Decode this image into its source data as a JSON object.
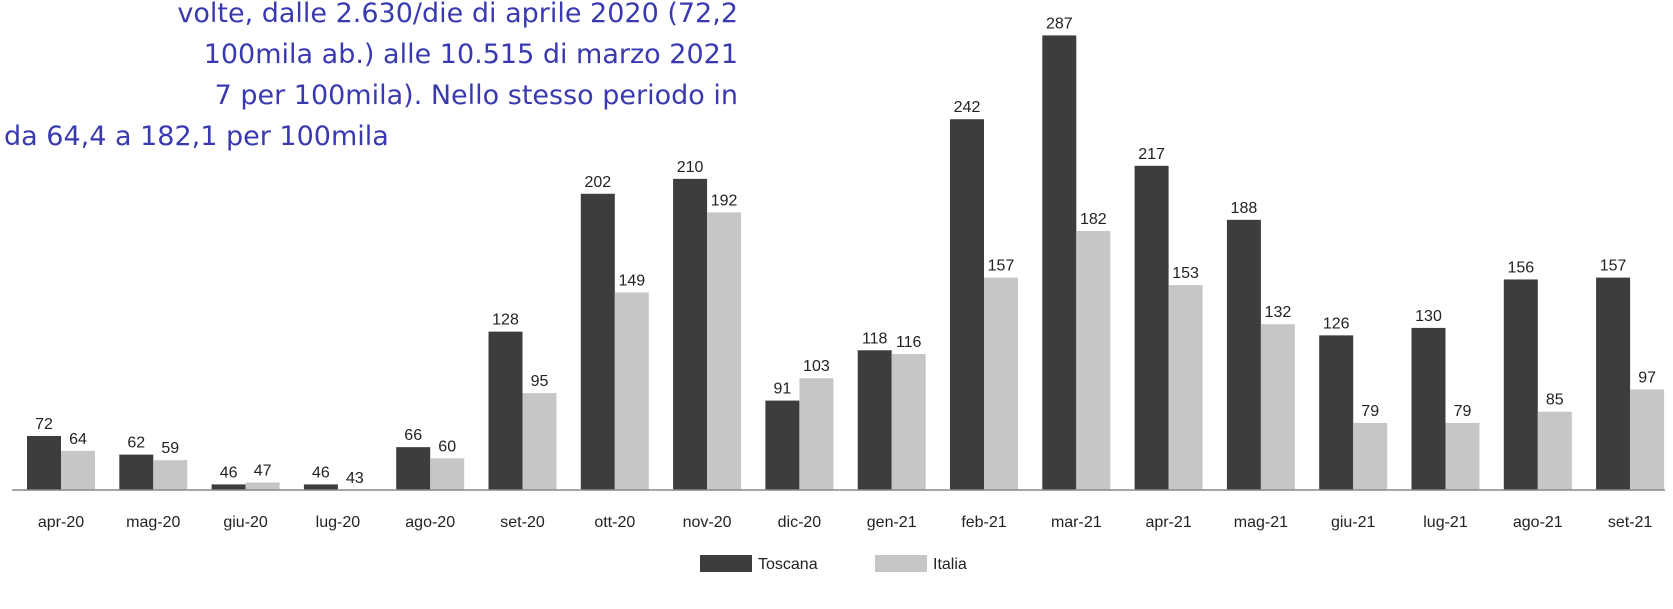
{
  "chart_data": {
    "type": "bar",
    "annotation": [
      "volte, dalle 2.630/die di aprile 2020 (72,2",
      "100mila ab.) alle 10.515 di marzo 2021",
      "7 per 100mila). Nello stesso periodo in",
      "da 64,4 a 182,1 per 100mila"
    ],
    "categories": [
      "apr-20",
      "mag-20",
      "giu-20",
      "lug-20",
      "ago-20",
      "set-20",
      "ott-20",
      "nov-20",
      "dic-20",
      "gen-21",
      "feb-21",
      "mar-21",
      "apr-21",
      "mag-21",
      "giu-21",
      "lug-21",
      "ago-21",
      "set-21"
    ],
    "series": [
      {
        "name": "Toscana",
        "color": "#3d3d3d",
        "values": [
          72,
          62,
          46,
          46,
          66,
          128,
          202,
          210,
          91,
          118,
          242,
          287,
          217,
          188,
          126,
          130,
          156,
          157
        ]
      },
      {
        "name": "Italia",
        "color": "#c6c6c6",
        "values": [
          64,
          59,
          47,
          43,
          60,
          95,
          149,
          192,
          103,
          116,
          157,
          182,
          153,
          132,
          79,
          79,
          85,
          97
        ]
      }
    ],
    "ylim": [
      43,
      306
    ],
    "legend": "bottom"
  }
}
